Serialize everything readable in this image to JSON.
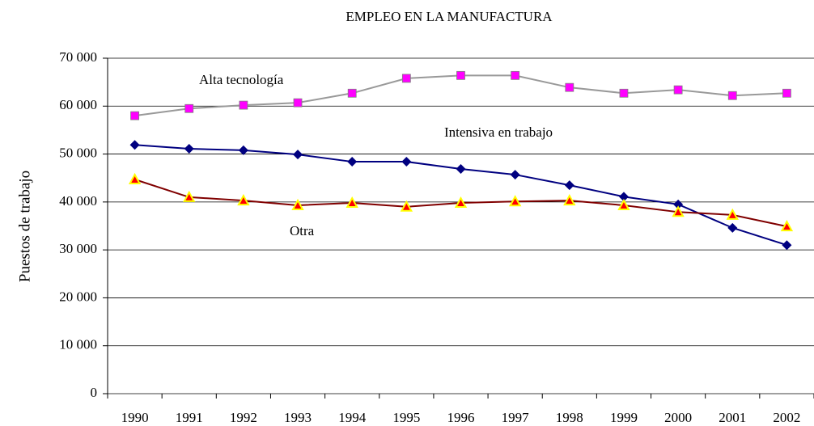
{
  "chart_data": {
    "type": "line",
    "title": "EMPLEO EN LA MANUFACTURA",
    "y_label": "Puestos de trabajo",
    "categories": [
      "1990",
      "1991",
      "1992",
      "1993",
      "1994",
      "1995",
      "1996",
      "1997",
      "1998",
      "1999",
      "2000",
      "2001",
      "2002"
    ],
    "series": [
      {
        "name": "Alta tecnología",
        "color": "#999999",
        "marker": "square",
        "marker_color": "#ff00ff",
        "values": [
          58000,
          59500,
          60200,
          60700,
          62700,
          65800,
          66400,
          66400,
          63900,
          62700,
          63400,
          62200,
          62700
        ]
      },
      {
        "name": "Intensiva en trabajo",
        "color": "#000080",
        "marker": "diamond",
        "marker_color": "#000080",
        "values": [
          51900,
          51100,
          50800,
          49900,
          48400,
          48400,
          46900,
          45700,
          43500,
          41100,
          39500,
          34600,
          31000
        ]
      },
      {
        "name": "Otra",
        "color": "#800000",
        "marker": "triangle",
        "marker_color": "#ff0000",
        "values": [
          44700,
          41000,
          40300,
          39300,
          39800,
          39000,
          39800,
          40100,
          40300,
          39300,
          37900,
          37300,
          34900
        ]
      }
    ],
    "ylim": [
      0,
      70000
    ],
    "yticks": [
      0,
      {
        "value": 10000,
        "label": "10 000"
      },
      {
        "value": 20000,
        "label": "20 000"
      },
      {
        "value": 30000,
        "label": "30 000"
      },
      {
        "value": 40000,
        "label": "40 000"
      },
      {
        "value": 50000,
        "label": "50 000"
      },
      {
        "value": 60000,
        "label": "60 000"
      },
      {
        "value": 70000,
        "label": "70 000"
      }
    ],
    "grid": true
  }
}
